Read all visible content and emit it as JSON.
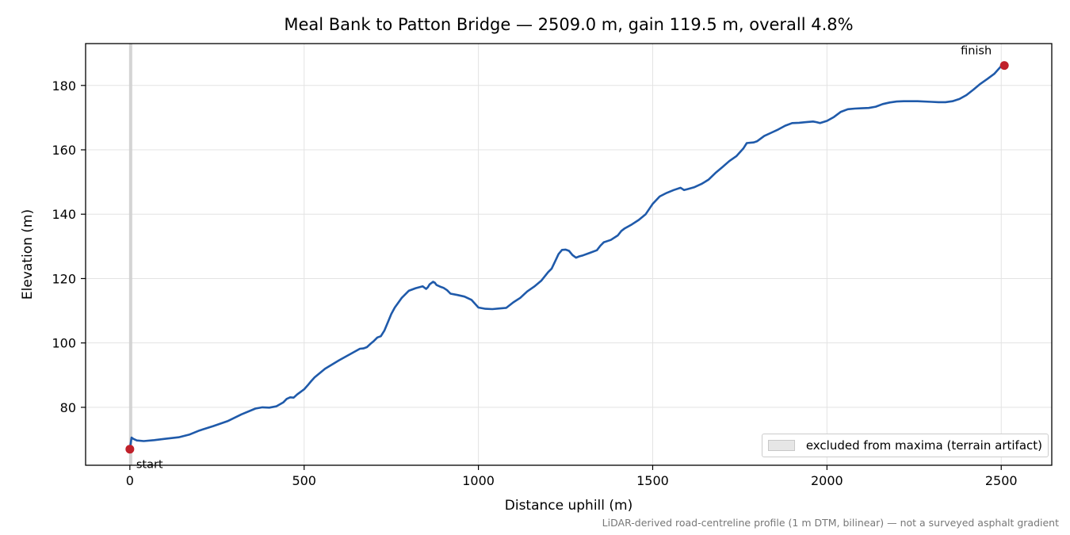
{
  "chart_data": {
    "type": "line",
    "title": "Meal Bank to Patton Bridge — 2509.0 m, gain 119.5 m, overall 4.8%",
    "xlabel": "Distance uphill (m)",
    "ylabel": "Elevation (m)",
    "xlim": [
      -127,
      2645
    ],
    "ylim": [
      62,
      193
    ],
    "xticks": [
      0,
      500,
      1000,
      1500,
      2000,
      2500
    ],
    "yticks": [
      80,
      100,
      120,
      140,
      160,
      180
    ],
    "grid": true,
    "line_color": "#1f5aaa",
    "marker_color": "#c0202a",
    "series": [
      {
        "x": [
          0,
          5,
          10,
          20,
          40,
          70,
          100,
          140,
          170,
          200,
          240,
          280,
          320,
          360,
          380,
          400,
          420,
          440,
          450,
          460,
          470,
          480,
          490,
          500,
          510,
          520,
          530,
          560,
          600,
          640,
          660,
          670,
          680,
          690,
          700,
          710,
          720,
          730,
          740,
          750,
          760,
          780,
          800,
          820,
          840,
          850,
          855,
          860,
          870,
          875,
          880,
          890,
          900,
          910,
          920,
          940,
          960,
          980,
          990,
          1000,
          1020,
          1040,
          1060,
          1080,
          1100,
          1120,
          1140,
          1160,
          1180,
          1200,
          1210,
          1220,
          1230,
          1240,
          1250,
          1260,
          1270,
          1280,
          1290,
          1300,
          1320,
          1340,
          1350,
          1360,
          1380,
          1400,
          1410,
          1420,
          1440,
          1460,
          1480,
          1500,
          1520,
          1540,
          1560,
          1580,
          1590,
          1600,
          1620,
          1640,
          1660,
          1680,
          1700,
          1720,
          1740,
          1760,
          1770,
          1780,
          1790,
          1800,
          1820,
          1840,
          1860,
          1880,
          1900,
          1920,
          1940,
          1960,
          1970,
          1980,
          2000,
          2020,
          2040,
          2060,
          2080,
          2100,
          2120,
          2140,
          2160,
          2180,
          2200,
          2220,
          2260,
          2300,
          2320,
          2340,
          2360,
          2380,
          2400,
          2420,
          2440,
          2460,
          2480,
          2500,
          2509
        ],
        "y": [
          67,
          70.6,
          70.2,
          69.7,
          69.5,
          69.8,
          70.2,
          70.7,
          71.5,
          72.8,
          74.2,
          75.7,
          77.8,
          79.6,
          80.0,
          79.9,
          80.3,
          81.5,
          82.6,
          83.1,
          83.0,
          84.0,
          84.8,
          85.6,
          86.8,
          88.1,
          89.3,
          92.0,
          94.6,
          97.0,
          98.2,
          98.3,
          98.7,
          99.7,
          100.6,
          101.7,
          102.1,
          103.8,
          106.4,
          109.0,
          111.0,
          114.0,
          116.2,
          117.0,
          117.6,
          116.8,
          117.3,
          118.2,
          119.0,
          118.7,
          118.0,
          117.5,
          117.1,
          116.4,
          115.3,
          114.9,
          114.4,
          113.4,
          112.2,
          111.0,
          110.6,
          110.5,
          110.7,
          110.9,
          112.6,
          114.0,
          116.0,
          117.5,
          119.3,
          122.0,
          123.1,
          125.3,
          127.6,
          128.9,
          129.0,
          128.6,
          127.3,
          126.5,
          126.9,
          127.2,
          128.0,
          128.8,
          130.2,
          131.3,
          132.0,
          133.4,
          134.8,
          135.6,
          136.8,
          138.2,
          140.0,
          143.2,
          145.5,
          146.6,
          147.5,
          148.2,
          147.5,
          147.8,
          148.4,
          149.4,
          150.7,
          152.8,
          154.6,
          156.5,
          158.0,
          160.4,
          162.1,
          162.2,
          162.3,
          162.7,
          164.3,
          165.3,
          166.3,
          167.5,
          168.3,
          168.4,
          168.6,
          168.8,
          168.6,
          168.3,
          169.0,
          170.2,
          171.8,
          172.6,
          172.8,
          172.9,
          173.0,
          173.4,
          174.2,
          174.7,
          175.0,
          175.1,
          175.1,
          174.9,
          174.8,
          174.8,
          175.1,
          175.8,
          177.0,
          178.7,
          180.5,
          182.0,
          183.6,
          186.0,
          186.2
        ]
      }
    ],
    "points": [
      {
        "label": "start",
        "x": 0,
        "y": 67
      },
      {
        "label": "finish",
        "x": 2509,
        "y": 186.2
      }
    ],
    "excluded_band": {
      "x0": 0,
      "x1": 7
    },
    "legend": {
      "label": "excluded from maxima (terrain artifact)",
      "placement": "lower-right"
    },
    "footnote": "LiDAR-derived road-centreline profile (1 m DTM, bilinear) — not a surveyed asphalt gradient"
  }
}
